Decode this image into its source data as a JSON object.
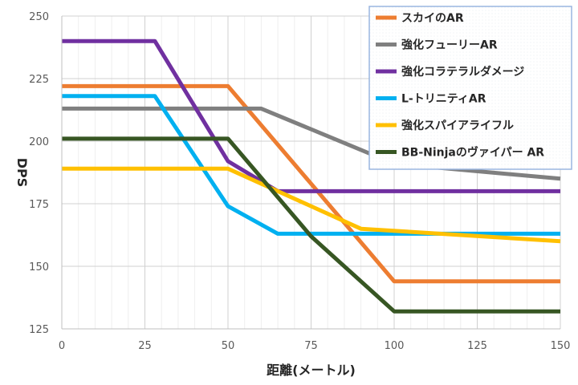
{
  "chart_data": {
    "type": "line",
    "title": "",
    "xlabel": "距離(メートル)",
    "ylabel": "DPS",
    "xlim": [
      0,
      150
    ],
    "ylim": [
      125,
      250
    ],
    "x_ticks": [
      0,
      25,
      50,
      75,
      100,
      125,
      150
    ],
    "y_ticks": [
      125,
      150,
      175,
      200,
      225,
      250
    ],
    "grid": true,
    "legend_position": "top-right",
    "series": [
      {
        "name": "スカイのAR",
        "color": "#ED7D31",
        "points": [
          [
            0,
            222
          ],
          [
            50,
            222
          ],
          [
            100,
            144
          ],
          [
            150,
            144
          ]
        ]
      },
      {
        "name": "強化フューリーAR",
        "color": "#7F7F7F",
        "points": [
          [
            0,
            213
          ],
          [
            60,
            213
          ],
          [
            100,
            191
          ],
          [
            150,
            185
          ]
        ]
      },
      {
        "name": "強化コラテラルダメージ",
        "color": "#7030A0",
        "points": [
          [
            0,
            240
          ],
          [
            28,
            240
          ],
          [
            50,
            192
          ],
          [
            65,
            180
          ],
          [
            150,
            180
          ]
        ]
      },
      {
        "name": "L-トリニティAR",
        "color": "#00B0F0",
        "points": [
          [
            0,
            218
          ],
          [
            28,
            218
          ],
          [
            50,
            174
          ],
          [
            65,
            163
          ],
          [
            150,
            163
          ]
        ]
      },
      {
        "name": "強化スパイアライフル",
        "color": "#FFC000",
        "points": [
          [
            0,
            189
          ],
          [
            50,
            189
          ],
          [
            90,
            165
          ],
          [
            150,
            160
          ]
        ]
      },
      {
        "name": "BB-Ninjaのヴァイパー AR",
        "color": "#375623",
        "points": [
          [
            0,
            201
          ],
          [
            50,
            201
          ],
          [
            75,
            162
          ],
          [
            100,
            132
          ],
          [
            150,
            132
          ]
        ]
      }
    ]
  }
}
